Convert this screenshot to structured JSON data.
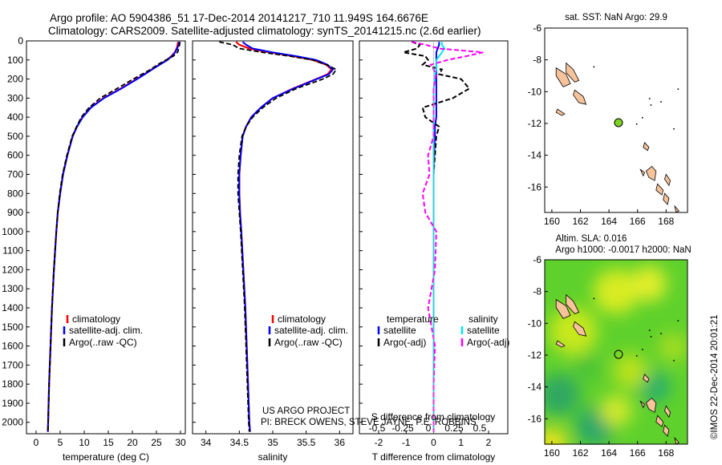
{
  "header": {
    "line1": "Argo profile: AO 5904386_51 17-Dec-2014 20141217_710 11.949S 164.6676E",
    "line2": "Climatology: CARS2009. Satellite-adjusted climatology: synTS_20141215.nc (2.6d earlier)"
  },
  "credits": {
    "project": "US ARGO PROJECT",
    "pi": "PI: BRECK OWENS, STEVE JAYNE, P.E. ROBBINS"
  },
  "imos_stamp": "©IMOS 22-Dec-2014 20:01:21",
  "colors": {
    "climatology": "#ff0000",
    "satellite": "#0000ff",
    "argo": "#000000",
    "sat_salinity": "#00e5ff",
    "argo_salinity": "#ff00ff"
  },
  "chart_data": [
    {
      "id": "temperature",
      "type": "line",
      "xlabel": "temperature (deg C)",
      "ylabel": "",
      "xlim": [
        -2,
        31
      ],
      "ylim": [
        2060,
        0
      ],
      "xticks": [
        0,
        5,
        10,
        15,
        20,
        25,
        30
      ],
      "yticks": [
        0,
        100,
        200,
        300,
        400,
        500,
        600,
        700,
        800,
        900,
        1000,
        1100,
        1200,
        1300,
        1400,
        1500,
        1600,
        1700,
        1800,
        1900,
        2000
      ],
      "legend": [
        "climatology",
        "satellite-adj. clim.",
        "Argo(..raw -QC)"
      ],
      "depth": [
        5,
        20,
        40,
        60,
        80,
        100,
        125,
        150,
        175,
        200,
        250,
        300,
        350,
        400,
        450,
        500,
        600,
        700,
        800,
        900,
        1000,
        1200,
        1400,
        1600,
        1800,
        2000,
        2050
      ],
      "series": [
        {
          "name": "climatology",
          "values": [
            29.5,
            29.4,
            29.2,
            28.8,
            28.1,
            27.2,
            25.6,
            24.0,
            22.5,
            20.9,
            17.6,
            14.0,
            11.3,
            9.6,
            8.5,
            7.6,
            6.5,
            5.6,
            5.0,
            4.5,
            4.2,
            3.7,
            3.3,
            3.0,
            2.7,
            2.5,
            2.45
          ]
        },
        {
          "name": "satellite-adj. clim.",
          "values": [
            29.7,
            29.6,
            29.3,
            28.9,
            28.2,
            27.3,
            25.7,
            24.1,
            22.6,
            21.0,
            17.7,
            14.1,
            11.4,
            9.7,
            8.5,
            7.6,
            6.5,
            5.6,
            5.0,
            4.5,
            4.2,
            3.7,
            3.3,
            3.0,
            2.7,
            2.5,
            2.45
          ]
        },
        {
          "name": "Argo(..raw -QC)",
          "values": [
            29.9,
            29.8,
            29.6,
            29.4,
            28.5,
            27.0,
            25.2,
            23.8,
            22.0,
            20.2,
            16.8,
            13.3,
            11.0,
            9.4,
            8.4,
            7.5,
            6.4,
            5.5,
            4.9,
            4.5,
            4.2,
            3.7,
            3.3,
            3.0,
            2.7,
            2.5,
            2.45
          ]
        }
      ]
    },
    {
      "id": "salinity",
      "type": "line",
      "xlabel": "salinity",
      "ylabel": "",
      "xlim": [
        33.8,
        36.2
      ],
      "ylim": [
        2060,
        0
      ],
      "xticks": [
        34,
        34.5,
        35,
        35.5,
        36
      ],
      "legend": [
        "climatology",
        "satellite-adj. clim.",
        "Argo(..raw -QC)"
      ],
      "depth": [
        5,
        20,
        40,
        60,
        80,
        100,
        125,
        150,
        175,
        200,
        250,
        300,
        350,
        400,
        450,
        500,
        600,
        700,
        800,
        900,
        1000,
        1200,
        1400,
        1600,
        1800,
        2000,
        2050
      ],
      "series": [
        {
          "name": "climatology",
          "values": [
            34.45,
            34.5,
            34.65,
            34.95,
            35.3,
            35.6,
            35.8,
            35.88,
            35.82,
            35.65,
            35.3,
            35.0,
            34.82,
            34.68,
            34.6,
            34.55,
            34.52,
            34.5,
            34.5,
            34.51,
            34.53,
            34.56,
            34.59,
            34.61,
            34.63,
            34.65,
            34.66
          ]
        },
        {
          "name": "satellite-adj. clim.",
          "values": [
            34.55,
            34.6,
            34.7,
            35.0,
            35.35,
            35.65,
            35.82,
            35.9,
            35.84,
            35.66,
            35.31,
            35.0,
            34.82,
            34.68,
            34.6,
            34.55,
            34.52,
            34.5,
            34.5,
            34.51,
            34.53,
            34.56,
            34.59,
            34.61,
            34.63,
            34.65,
            34.66
          ]
        },
        {
          "name": "Argo(..raw -QC)",
          "values": [
            34.2,
            34.4,
            34.5,
            34.85,
            35.25,
            35.6,
            35.8,
            35.95,
            35.9,
            35.75,
            35.35,
            35.05,
            34.85,
            34.7,
            34.6,
            34.54,
            34.5,
            34.48,
            34.48,
            34.5,
            34.52,
            34.55,
            34.58,
            34.6,
            34.62,
            34.64,
            34.65
          ]
        }
      ]
    },
    {
      "id": "difference",
      "type": "line",
      "xlabel": "T difference from climatology",
      "xlabel_top": "S difference from climatology",
      "ylabel": "",
      "xlim": [
        -2.7,
        2.7
      ],
      "ylim": [
        2060,
        0
      ],
      "xticks": [
        -2,
        -1,
        0,
        1,
        2
      ],
      "xticks_top": [
        "-0.5",
        "-0.25",
        "0",
        "0.25",
        "0.5"
      ],
      "legend_headers": [
        "temperature",
        "salinity"
      ],
      "legend": [
        "satellite",
        "Argo(-adj)",
        "satellite",
        "Argo(-adj)"
      ],
      "depth": [
        5,
        20,
        40,
        60,
        80,
        100,
        125,
        150,
        175,
        200,
        250,
        300,
        350,
        400,
        450,
        500,
        600,
        700,
        800,
        900,
        1000,
        1200,
        1400,
        1600,
        1800,
        2000,
        2050
      ],
      "series": [
        {
          "name": "satellite",
          "values": [
            0.2,
            0.2,
            0.15,
            0.1,
            0.1,
            0.1,
            0.1,
            0.1,
            0.1,
            0.1,
            0.1,
            0.1,
            0.1,
            0.1,
            0.05,
            0.05,
            0.02,
            0.0,
            0.0,
            0.0,
            0.0,
            0.0,
            0.0,
            0.0,
            0.0,
            0.0,
            0.0
          ]
        },
        {
          "name": "Argo(-adj)",
          "values": [
            -0.8,
            -0.5,
            -0.6,
            -1.1,
            -0.3,
            -0.2,
            -0.4,
            0.3,
            0.2,
            1.0,
            1.3,
            0.7,
            -0.4,
            -0.3,
            0.2,
            0.1,
            0.05,
            0.0,
            0.0,
            0.0,
            0.0,
            0.0,
            0.0,
            0.0,
            0.0,
            0.0,
            0.0
          ]
        },
        {
          "name": "satellite",
          "values": [
            0.3,
            0.3,
            0.4,
            0.3,
            0.2,
            0.1,
            0.1,
            0.1,
            0.05,
            0.05,
            0.0,
            0.0,
            0.0,
            0.0,
            0.0,
            0.0,
            0.0,
            0.0,
            0.0,
            0.0,
            0.0,
            0.0,
            0.0,
            0.0,
            0.0,
            0.0,
            0.0
          ]
        },
        {
          "name": "Argo(-adj)",
          "values": [
            -0.8,
            -0.3,
            0.2,
            1.8,
            1.2,
            0.5,
            -0.1,
            0.0,
            0.1,
            0.05,
            0.0,
            0.0,
            0.0,
            0.0,
            0.0,
            0.0,
            -0.2,
            -0.15,
            -0.4,
            -0.3,
            0.1,
            0.05,
            -0.2,
            0.05,
            0.0,
            0.0,
            0.0
          ]
        }
      ]
    },
    {
      "id": "map_sst",
      "type": "map",
      "title": "sat. SST: NaN Argo: 29.9",
      "xlim": [
        159.5,
        169.5
      ],
      "ylim": [
        -17.6,
        -6
      ],
      "xticks": [
        160,
        162,
        164,
        166,
        168
      ],
      "yticks": [
        -6,
        -8,
        -10,
        -12,
        -14,
        -16
      ],
      "float_position": {
        "lon": 164.6676,
        "lat": -11.949
      }
    },
    {
      "id": "map_sla",
      "type": "heatmap",
      "title": "Altim. SLA: 0.016",
      "subtitle": "Argo h1000: -0.0017 h2000: NaN",
      "xlim": [
        159.5,
        169.5
      ],
      "ylim": [
        -17.6,
        -6
      ],
      "xticks": [
        160,
        162,
        164,
        166,
        168
      ],
      "yticks": [
        -6,
        -8,
        -10,
        -12,
        -14,
        -16
      ],
      "float_position": {
        "lon": 164.6676,
        "lat": -11.949
      }
    }
  ]
}
